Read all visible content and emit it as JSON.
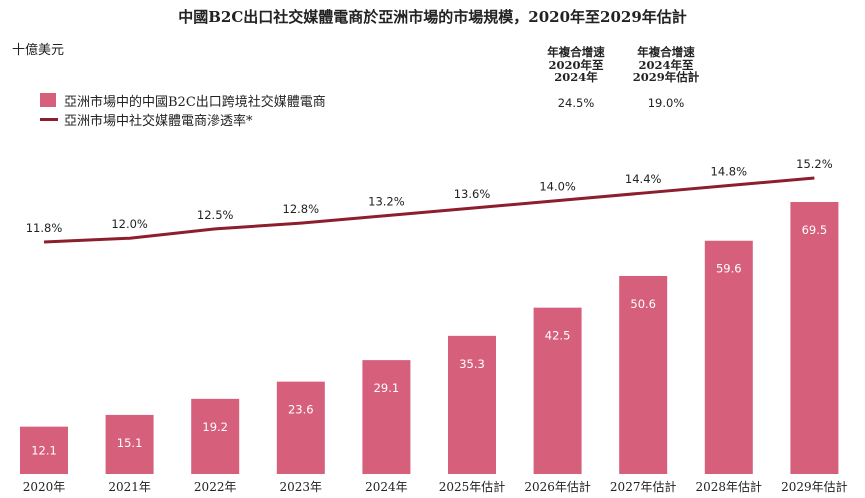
{
  "title": "中國B2C出口社交媒體電商於亞洲市場的市場規模，2020年至2029年估計",
  "unit": "十億美元",
  "cagr": [
    {
      "header": "年複合增速\n2020年至\n2024年",
      "value": "24.5%"
    },
    {
      "header": "年複合增速\n2024年至\n2029年估計",
      "value": "19.0%"
    }
  ],
  "legend": {
    "bar": "亞洲市場中的中國B2C出口跨境社交媒體電商",
    "line": "亞洲市場中社交媒體電商滲透率*"
  },
  "colors": {
    "bar": "#d6607b",
    "line": "#8c1e2d"
  },
  "chart_data": {
    "type": "bar",
    "categories": [
      "2020年",
      "2021年",
      "2022年",
      "2023年",
      "2024年",
      "2025年估計",
      "2026年估計",
      "2027年估計",
      "2028年估計",
      "2029年估計"
    ],
    "series": [
      {
        "name": "亞洲市場中的中國B2C出口跨境社交媒體電商",
        "type": "bar",
        "values": [
          12.1,
          15.1,
          19.2,
          23.6,
          29.1,
          35.3,
          42.5,
          50.6,
          59.6,
          69.5
        ],
        "labels": [
          "12.1",
          "15.1",
          "19.2",
          "23.6",
          "29.1",
          "35.3",
          "42.5",
          "50.6",
          "59.6",
          "69.5"
        ]
      },
      {
        "name": "亞洲市場中社交媒體電商滲透率*",
        "type": "line",
        "values": [
          11.8,
          12.0,
          12.5,
          12.8,
          13.2,
          13.6,
          14.0,
          14.4,
          14.8,
          15.2
        ],
        "labels": [
          "11.8%",
          "12.0%",
          "12.5%",
          "12.8%",
          "13.2%",
          "13.6%",
          "14.0%",
          "14.4%",
          "14.8%",
          "15.2%"
        ]
      }
    ],
    "ylabel": "十億美元",
    "legend_position": "top-left",
    "grid": false
  }
}
